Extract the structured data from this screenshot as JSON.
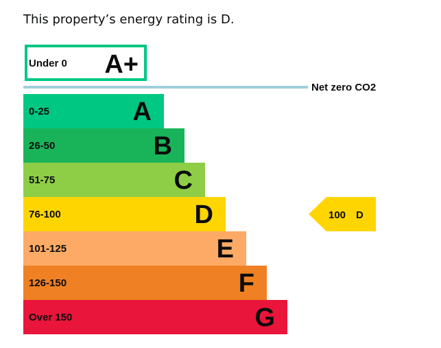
{
  "intro_text": "This property’s energy rating is D.",
  "chart_data": {
    "type": "bar",
    "title": "",
    "xlabel": "",
    "ylabel": "",
    "special_band": {
      "range": "Under 0",
      "letter": "A+",
      "border_color": "#00c781"
    },
    "net_zero_label": "Net zero CO2",
    "net_zero_line_color": "#9fcfdb",
    "bands": [
      {
        "range": "0-25",
        "letter": "A",
        "color": "#00c781",
        "letter_color": "#0b0c0c"
      },
      {
        "range": "26-50",
        "letter": "B",
        "color": "#19b459",
        "letter_color": "#0b0c0c"
      },
      {
        "range": "51-75",
        "letter": "C",
        "color": "#8dce46",
        "letter_color": "#0b0c0c"
      },
      {
        "range": "76-100",
        "letter": "D",
        "color": "#ffd500",
        "letter_color": "#0b0c0c"
      },
      {
        "range": "101-125",
        "letter": "E",
        "color": "#fcaa65",
        "letter_color": "#0b0c0c"
      },
      {
        "range": "126-150",
        "letter": "F",
        "color": "#ef8023",
        "letter_color": "#0b0c0c"
      },
      {
        "range": "Over 150",
        "letter": "G",
        "color": "#e9153b",
        "letter_color": "#0b0c0c"
      }
    ],
    "current": {
      "value": 100,
      "letter": "D",
      "band_index": 3,
      "color": "#ffd500"
    }
  }
}
